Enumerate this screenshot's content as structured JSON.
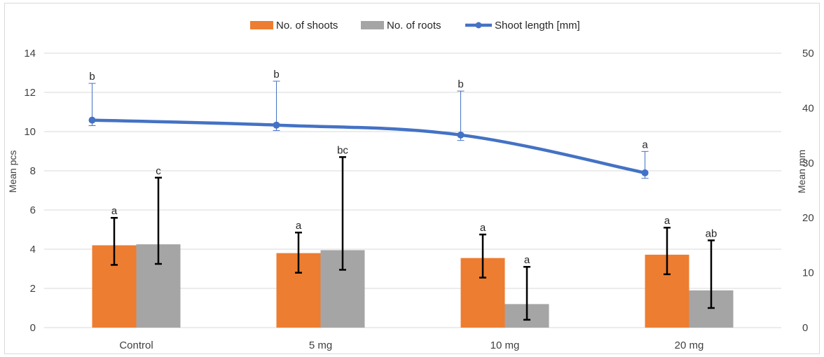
{
  "chart_data": {
    "type": "bar",
    "title": "",
    "categories": [
      "Control",
      "5 mg",
      "10 mg",
      "20 mg"
    ],
    "y_left": {
      "label": "Mean pcs",
      "range": [
        0,
        14
      ],
      "ticks": [
        0,
        2,
        4,
        6,
        8,
        10,
        12,
        14
      ]
    },
    "y_right": {
      "label": "Mean mm",
      "range": [
        0,
        50
      ],
      "ticks": [
        0,
        10,
        20,
        30,
        40,
        50
      ]
    },
    "grid": true,
    "legend_position": "top",
    "series": [
      {
        "name": "No. of shoots",
        "kind": "bar",
        "axis": "left",
        "color": "#ed7d31",
        "values": [
          4.2,
          3.8,
          3.55,
          3.72
        ],
        "error_low": [
          3.2,
          2.8,
          2.55,
          2.72
        ],
        "error_high": [
          5.6,
          4.85,
          4.75,
          5.1
        ],
        "letters": [
          "a",
          "a",
          "a",
          "a"
        ]
      },
      {
        "name": "No. of roots",
        "kind": "bar",
        "axis": "left",
        "color": "#a5a5a5",
        "values": [
          4.25,
          3.95,
          1.2,
          1.9
        ],
        "error_low": [
          3.25,
          2.95,
          0.4,
          1.0
        ],
        "error_high": [
          7.65,
          8.7,
          3.1,
          4.45
        ],
        "letters": [
          "c",
          "bc",
          "a",
          "ab"
        ]
      },
      {
        "name": "Shoot length [mm]",
        "kind": "line",
        "axis": "right",
        "color": "#4472c4",
        "values": [
          37.8,
          36.9,
          35.1,
          28.2
        ],
        "error_low": [
          36.8,
          35.9,
          34.1,
          27.2
        ],
        "error_high": [
          44.5,
          44.9,
          43.1,
          32.1
        ],
        "letters": [
          "b",
          "b",
          "b",
          "a"
        ]
      }
    ]
  }
}
